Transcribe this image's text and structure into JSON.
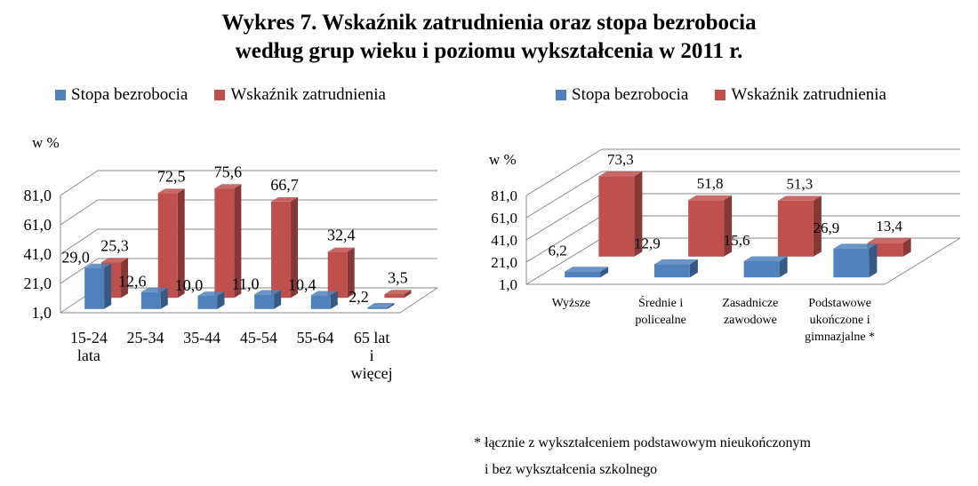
{
  "title": {
    "line1": "Wykres 7. Wskaźnik zatrudnienia oraz stopa bezrobocia",
    "line2": "według grup wieku i poziomu wykształcenia w 2011 r."
  },
  "footnote": {
    "line1": "* łącznie z wykształceniem podstawowym nieukończonym",
    "line2": "i bez wykształcenia szkolnego"
  },
  "colors": {
    "unemployment": "#4f81bd",
    "employment": "#c0504d"
  },
  "chart_data": [
    {
      "type": "bar",
      "ylabel": "w %",
      "yticks": [
        "81,0",
        "61,0",
        "41,0",
        "21,0",
        "1,0"
      ],
      "ylim": [
        1,
        81
      ],
      "legend": "top",
      "categories": [
        "15-24 lata",
        "25-34",
        "35-44",
        "45-54",
        "55-64",
        "65 lat i więcej"
      ],
      "series": [
        {
          "name": "Stopa bezrobocia",
          "values": [
            29.0,
            12.6,
            10.0,
            11.0,
            10.4,
            2.2
          ],
          "labels": [
            "29,0",
            "12,6",
            "10,0",
            "11,0",
            "10,4",
            "2,2"
          ]
        },
        {
          "name": "Wskaźnik zatrudnienia",
          "values": [
            25.3,
            72.5,
            75.6,
            66.7,
            32.4,
            3.5
          ],
          "labels": [
            "25,3",
            "72,5",
            "75,6",
            "66,7",
            "32,4",
            "3,5"
          ]
        }
      ]
    },
    {
      "type": "bar",
      "ylabel": "w %",
      "yticks": [
        "81,0",
        "61,0",
        "41,0",
        "21,0",
        "1,0"
      ],
      "ylim": [
        1,
        81
      ],
      "legend": "top",
      "categories": [
        "Wyższe",
        "Średnie i policealne",
        "Zasadnicze zawodowe",
        "Podstawowe ukończone i gimnazjalne *"
      ],
      "series": [
        {
          "name": "Stopa bezrobocia",
          "values": [
            6.2,
            12.9,
            15.6,
            26.9
          ],
          "labels": [
            "6,2",
            "12,9",
            "15,6",
            "26,9"
          ]
        },
        {
          "name": "Wskaźnik zatrudnienia",
          "values": [
            73.3,
            51.8,
            51.3,
            13.4
          ],
          "labels": [
            "73,3",
            "51,8",
            "51,3",
            "13,4"
          ]
        }
      ]
    }
  ]
}
